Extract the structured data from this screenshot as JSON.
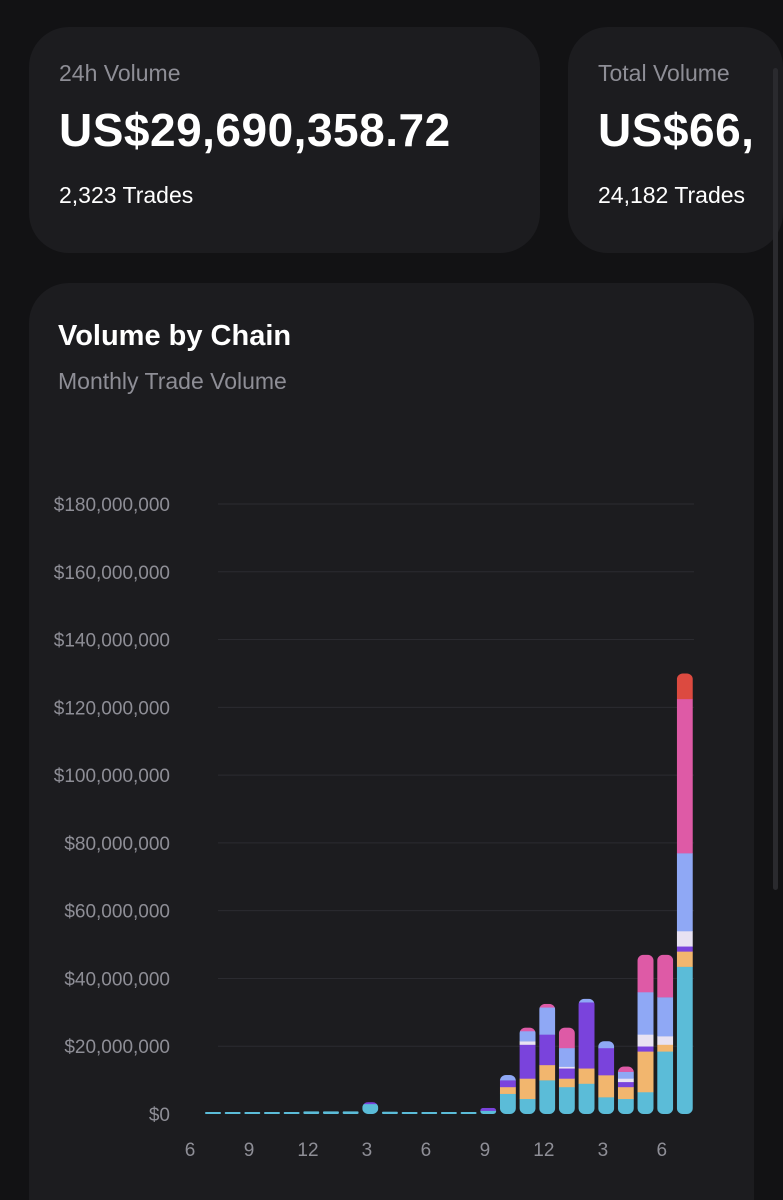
{
  "stats": [
    {
      "label": "24h Volume",
      "value": "US$29,690,358.72",
      "sub": "2,323 Trades"
    },
    {
      "label": "Total Volume",
      "value": "US$66,",
      "sub": "24,182 Trades"
    }
  ],
  "chart_card": {
    "title": "Volume by Chain",
    "subtitle": "Monthly Trade Volume"
  },
  "chart_data": {
    "type": "bar",
    "stacked": true,
    "title": "Volume by Chain",
    "subtitle": "Monthly Trade Volume",
    "xlabel": "",
    "ylabel": "",
    "ylim": [
      0,
      180000000
    ],
    "yticks": [
      0,
      20000000,
      40000000,
      60000000,
      80000000,
      100000000,
      120000000,
      140000000,
      160000000,
      180000000
    ],
    "ytick_labels": [
      "$0",
      "$20,000,000",
      "$40,000,000",
      "$60,000,000",
      "$80,000,000",
      "$100,000,000",
      "$120,000,000",
      "$140,000,000",
      "$160,000,000",
      "$180,000,000"
    ],
    "grid": true,
    "legend": "none",
    "categories": [
      "6",
      "7",
      "8",
      "9",
      "10",
      "11",
      "12",
      "1",
      "2",
      "3",
      "4",
      "5",
      "6",
      "7",
      "8",
      "9",
      "10",
      "11",
      "12",
      "1",
      "2",
      "3",
      "4",
      "5",
      "6",
      "7"
    ],
    "xtick_labels": [
      {
        "index": 0,
        "label": "6"
      },
      {
        "index": 3,
        "label": "9"
      },
      {
        "index": 6,
        "label": "12"
      },
      {
        "index": 9,
        "label": "3"
      },
      {
        "index": 12,
        "label": "6"
      },
      {
        "index": 15,
        "label": "9"
      },
      {
        "index": 18,
        "label": "12"
      },
      {
        "index": 21,
        "label": "3"
      },
      {
        "index": 24,
        "label": "6"
      }
    ],
    "series": [
      {
        "color": "#5bbcd8",
        "values": [
          200000,
          200000,
          300000,
          600000,
          500000,
          800000,
          800000,
          800000,
          3000000,
          700000,
          500000,
          400000,
          500000,
          300000,
          1000000,
          6000000,
          4500000,
          10000000,
          8000000,
          9000000,
          5000000,
          4500000,
          6500000,
          18500000,
          43500000,
          0
        ]
      },
      {
        "color": "#f2b66e",
        "values": [
          0,
          0,
          0,
          0,
          0,
          0,
          0,
          0,
          0,
          0,
          0,
          0,
          0,
          0,
          0,
          2000000,
          6000000,
          4500000,
          2500000,
          4500000,
          6500000,
          3500000,
          12000000,
          2000000,
          4500000,
          0
        ]
      },
      {
        "color": "#7a43dc",
        "values": [
          0,
          0,
          0,
          0,
          0,
          0,
          0,
          0,
          500000,
          0,
          0,
          0,
          0,
          0,
          800000,
          2000000,
          10000000,
          9000000,
          3000000,
          19500000,
          8000000,
          1500000,
          1500000,
          0,
          1500000,
          0
        ]
      },
      {
        "color": "#e8e2f2",
        "values": [
          0,
          0,
          0,
          0,
          0,
          0,
          0,
          0,
          0,
          0,
          0,
          0,
          0,
          0,
          0,
          0,
          1000000,
          0,
          500000,
          0,
          0,
          1000000,
          3500000,
          2500000,
          4500000,
          0
        ]
      },
      {
        "color": "#8fa8f5",
        "values": [
          0,
          0,
          0,
          0,
          0,
          0,
          0,
          0,
          0,
          0,
          0,
          0,
          0,
          0,
          0,
          1500000,
          3000000,
          8000000,
          5500000,
          1000000,
          2000000,
          2000000,
          12500000,
          11500000,
          23000000,
          0
        ]
      },
      {
        "color": "#de5aa6",
        "values": [
          0,
          0,
          0,
          0,
          0,
          0,
          0,
          0,
          0,
          0,
          0,
          0,
          0,
          0,
          0,
          0,
          1000000,
          1000000,
          6000000,
          0,
          0,
          1500000,
          11000000,
          12500000,
          45500000,
          0
        ]
      },
      {
        "color": "#dc4a40",
        "values": [
          0,
          0,
          0,
          0,
          0,
          0,
          0,
          0,
          0,
          0,
          0,
          0,
          0,
          0,
          0,
          0,
          0,
          0,
          0,
          0,
          0,
          0,
          0,
          0,
          7500000,
          0
        ]
      }
    ],
    "colors": {
      "background": "#121214",
      "card": "#1c1c1f",
      "muted_text": "#8e8e96",
      "grid": "#2b2b30"
    }
  }
}
